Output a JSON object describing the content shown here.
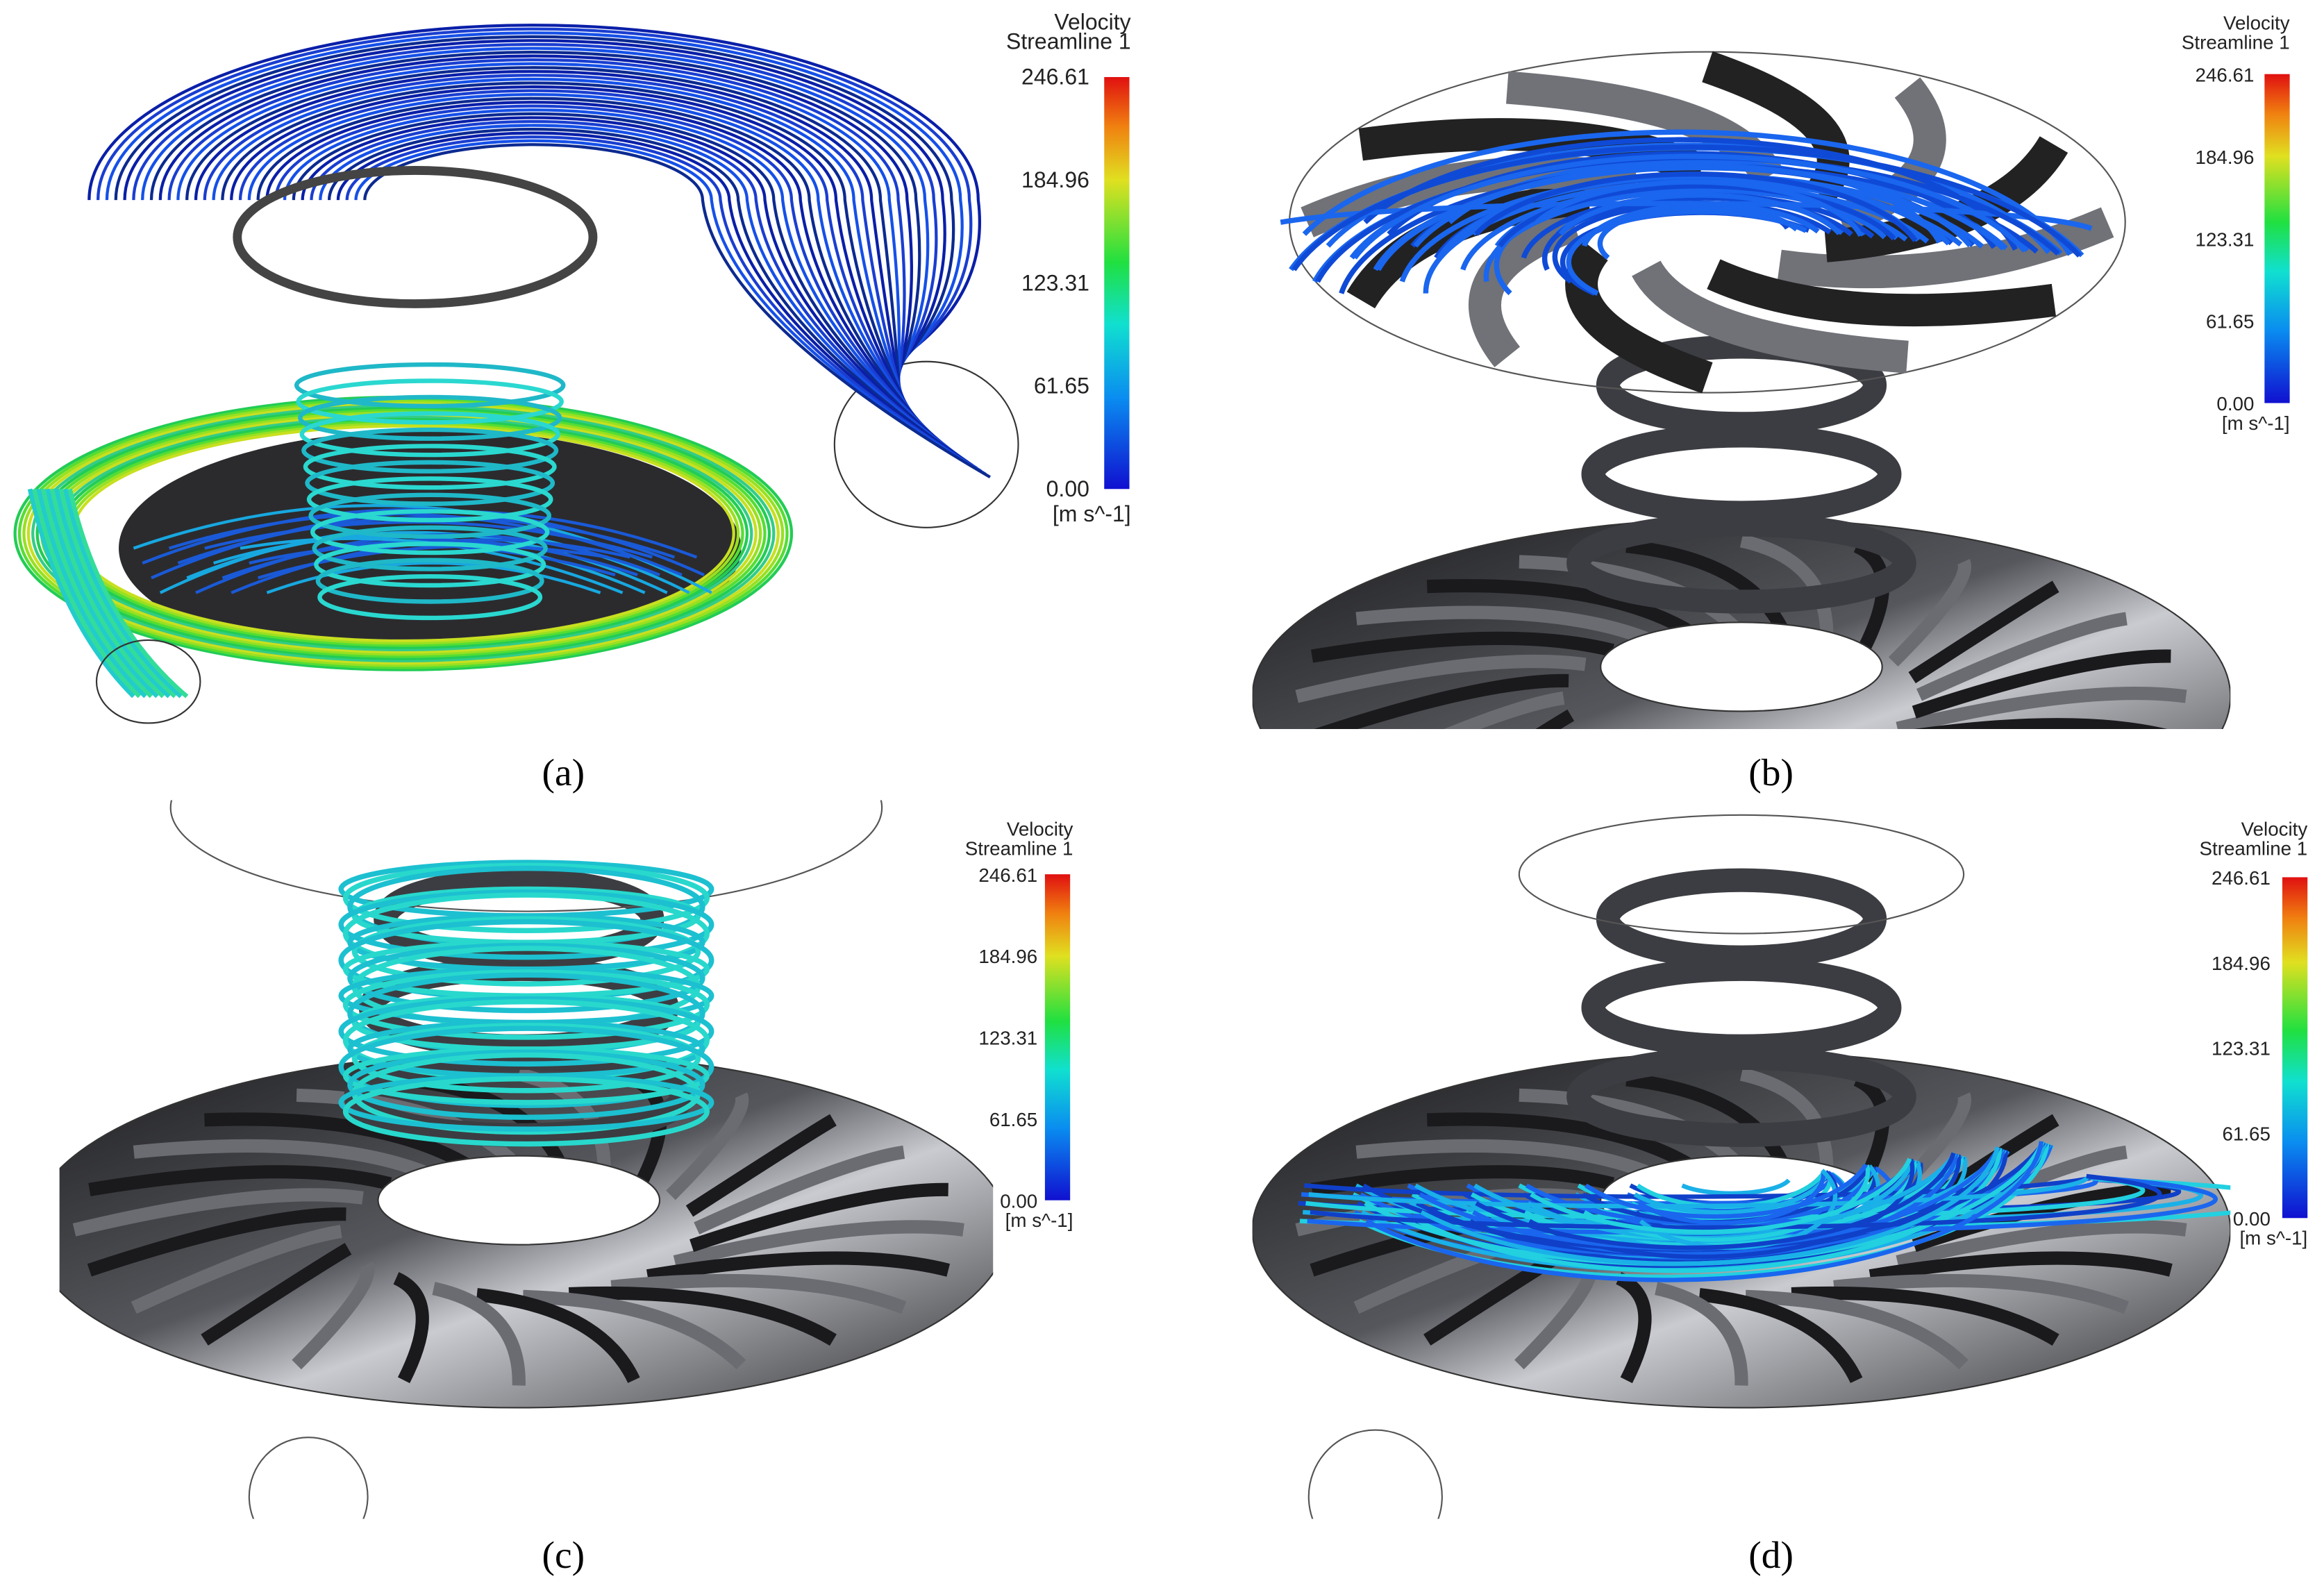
{
  "panels": [
    {
      "label": "(a)",
      "legend": {
        "title": "Velocity",
        "subtitle": "Streamline 1",
        "ticks": [
          "246.61",
          "184.96",
          "123.31",
          "61.65",
          "0.00"
        ],
        "unit": "[m s^-1]"
      }
    },
    {
      "label": "(b)",
      "legend": {
        "title": "Velocity",
        "subtitle": "Streamline 1",
        "ticks": [
          "246.61",
          "184.96",
          "123.31",
          "61.65",
          "0.00"
        ],
        "unit": "[m s^-1]"
      }
    },
    {
      "label": "(c)",
      "legend": {
        "title": "Velocity",
        "subtitle": "Streamline 1",
        "ticks": [
          "246.61",
          "184.96",
          "123.31",
          "61.65",
          "0.00"
        ],
        "unit": "[m s^-1]"
      }
    },
    {
      "label": "(d)",
      "legend": {
        "title": "Velocity",
        "subtitle": "Streamline 1",
        "ticks": [
          "246.61",
          "184.96",
          "123.31",
          "61.65",
          "0.00"
        ],
        "unit": "[m s^-1]"
      }
    }
  ]
}
